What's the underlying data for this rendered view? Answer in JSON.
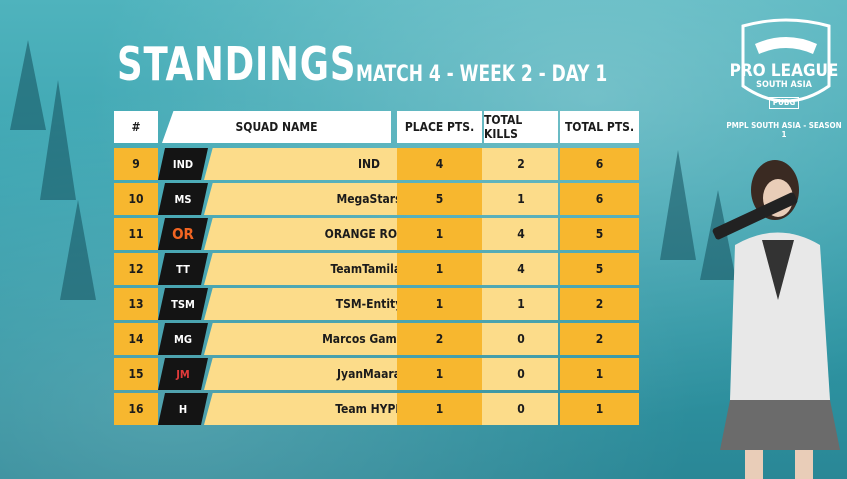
{
  "header": {
    "title": "STANDINGS",
    "subtitle": "MATCH 4 - WEEK 2 - DAY 1"
  },
  "branding": {
    "league_main": "PRO LEAGUE",
    "league_region": "SOUTH ASIA",
    "league_badge": "PUBG",
    "league_season": "PMPL SOUTH ASIA - SEASON 1"
  },
  "table": {
    "columns": {
      "rank": "#",
      "squad": "SQUAD NAME",
      "place": "PLACE PTS.",
      "kills": "TOTAL KILLS",
      "total": "TOTAL PTS."
    },
    "rows": [
      {
        "rank": "9",
        "logo": "IND",
        "name": "IND",
        "place": "4",
        "kills": "2",
        "total": "6"
      },
      {
        "rank": "10",
        "logo": "MS",
        "name": "MegaStars",
        "place": "5",
        "kills": "1",
        "total": "6"
      },
      {
        "rank": "11",
        "logo": "OR",
        "name": "ORANGE ROCK",
        "place": "1",
        "kills": "4",
        "total": "5"
      },
      {
        "rank": "12",
        "logo": "TT",
        "name": "TeamTamilas",
        "place": "1",
        "kills": "4",
        "total": "5"
      },
      {
        "rank": "13",
        "logo": "TSM",
        "name": "TSM-Entity",
        "place": "1",
        "kills": "1",
        "total": "2"
      },
      {
        "rank": "14",
        "logo": "MG",
        "name": "Marcos Gaming",
        "place": "2",
        "kills": "0",
        "total": "2"
      },
      {
        "rank": "15",
        "logo": "JM",
        "name": "JyanMaara",
        "place": "1",
        "kills": "0",
        "total": "1"
      },
      {
        "rank": "16",
        "logo": "H",
        "name": "Team HYPE",
        "place": "1",
        "kills": "0",
        "total": "1"
      }
    ]
  },
  "colors": {
    "accent": "#f7b72f",
    "accent_light": "#fcdc8a",
    "logo_bg": "#141414",
    "bg": "#3aa3b0"
  }
}
